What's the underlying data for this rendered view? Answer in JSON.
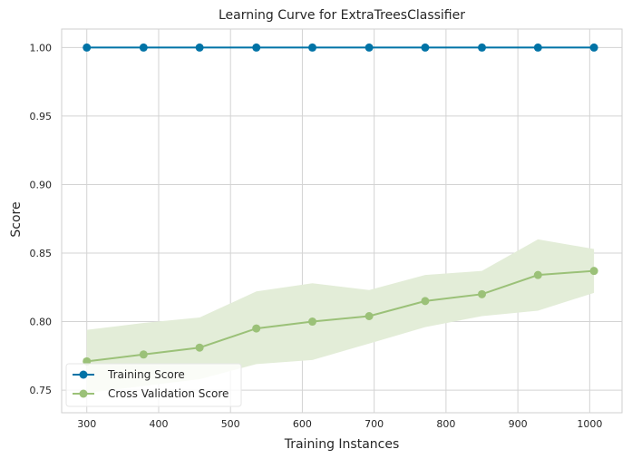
{
  "chart_data": {
    "type": "line",
    "title": "Learning Curve for ExtraTreesClassifier",
    "xlabel": "Training Instances",
    "ylabel": "Score",
    "xlim": [
      265,
      1045
    ],
    "ylim": [
      0.7335,
      1.0135
    ],
    "xticks": [
      300,
      400,
      500,
      600,
      700,
      800,
      900,
      1000
    ],
    "yticks": [
      0.75,
      0.8,
      0.85,
      0.9,
      0.95,
      1.0
    ],
    "ytick_labels": [
      "0.75",
      "0.80",
      "0.85",
      "0.90",
      "0.95",
      "1.00"
    ],
    "xtick_labels": [
      "300",
      "400",
      "500",
      "600",
      "700",
      "800",
      "900",
      "1000"
    ],
    "grid": true,
    "legend_position": "lower-left",
    "x": [
      300,
      379,
      457,
      536,
      614,
      693,
      771,
      850,
      928,
      1006
    ],
    "series": [
      {
        "name": "Training Score",
        "color": "#0173a6",
        "values": [
          1.0,
          1.0,
          1.0,
          1.0,
          1.0,
          1.0,
          1.0,
          1.0,
          1.0,
          1.0
        ],
        "band_upper": [
          1.0,
          1.0,
          1.0,
          1.0,
          1.0,
          1.0,
          1.0,
          1.0,
          1.0,
          1.0
        ],
        "band_lower": [
          1.0,
          1.0,
          1.0,
          1.0,
          1.0,
          1.0,
          1.0,
          1.0,
          1.0,
          1.0
        ]
      },
      {
        "name": "Cross Validation Score",
        "color": "#9bc178",
        "band_color": "#e3edd8",
        "values": [
          0.771,
          0.776,
          0.781,
          0.795,
          0.8,
          0.804,
          0.815,
          0.82,
          0.834,
          0.837
        ],
        "band_upper": [
          0.794,
          0.799,
          0.803,
          0.822,
          0.828,
          0.823,
          0.834,
          0.837,
          0.86,
          0.853
        ],
        "band_lower": [
          0.748,
          0.753,
          0.758,
          0.769,
          0.772,
          0.784,
          0.796,
          0.804,
          0.808,
          0.821
        ]
      }
    ]
  }
}
